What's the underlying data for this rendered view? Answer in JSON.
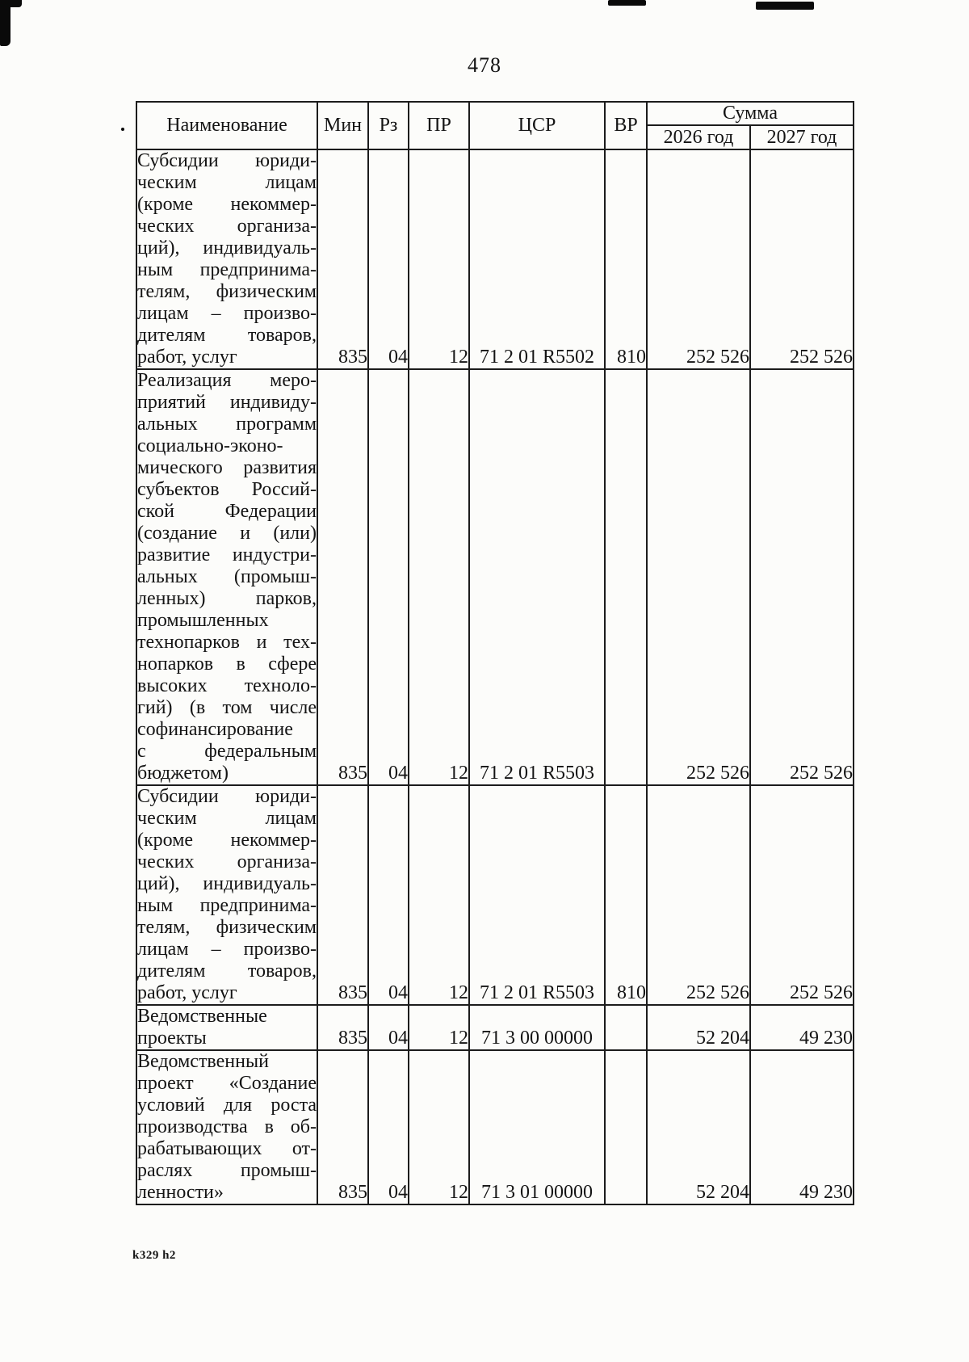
{
  "page": {
    "number": "478",
    "footer_code": "k329 h2"
  },
  "table": {
    "headers": {
      "name": "Наименование",
      "min": "Мин",
      "rz": "Рз",
      "pr": "ПР",
      "csr": "ЦСР",
      "vr": "ВР",
      "sum": "Сумма",
      "y2026": "2026 год",
      "y2027": "2027 год"
    },
    "rows": [
      {
        "name": "Субсидии юриди-\nческим лицам\n(кроме некоммер-\nческих организа-\nций), индивидуаль-\nным предпринима-\nтелям, физическим\nлицам – произво-\nдителям товаров,\nработ, услуг",
        "min": "835",
        "rz": "04",
        "pr": "12",
        "csr": "71 2 01 R5502",
        "vr": "810",
        "y2026": "252 526",
        "y2027": "252 526"
      },
      {
        "name": "Реализация меро-\nприятий индивиду-\nальных программ\nсоциально-эконо-\nмического развития\nсубъектов Россий-\nской Федерации\n(создание и (или)\nразвитие индустри-\nальных (промыш-\nленных) парков,\nпромышленных\nтехнопарков и тех-\nнопарков в сфере\nвысоких техноло-\nгий) (в том числе\nсофинансирование\nс федеральным\nбюджетом)",
        "min": "835",
        "rz": "04",
        "pr": "12",
        "csr": "71 2 01 R5503",
        "vr": "",
        "y2026": "252 526",
        "y2027": "252 526"
      },
      {
        "name": "Субсидии юриди-\nческим лицам\n(кроме некоммер-\nческих организа-\nций), индивидуаль-\nным предпринима-\nтелям, физическим\nлицам – произво-\nдителям товаров,\nработ, услуг",
        "min": "835",
        "rz": "04",
        "pr": "12",
        "csr": "71 2 01 R5503",
        "vr": "810",
        "y2026": "252 526",
        "y2027": "252 526"
      },
      {
        "name": "Ведомственные\nпроекты",
        "min": "835",
        "rz": "04",
        "pr": "12",
        "csr": "71 3 00 00000",
        "vr": "",
        "y2026": "52 204",
        "y2027": "49 230"
      },
      {
        "name": "Ведомственный\nпроект «Создание\nусловий для роста\nпроизводства в об-\nрабатывающих от-\nраслях промыш-\nленности»",
        "min": "835",
        "rz": "04",
        "pr": "12",
        "csr": "71 3 01 00000",
        "vr": "",
        "y2026": "52 204",
        "y2027": "49 230"
      }
    ]
  }
}
